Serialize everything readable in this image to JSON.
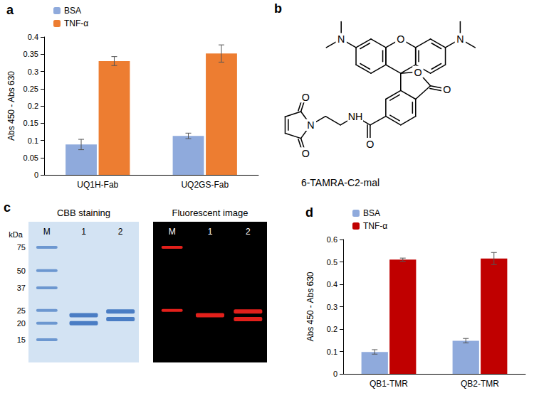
{
  "chart_data": [
    {
      "type": "bar",
      "title": "a",
      "categories": [
        "UQ1H-Fab",
        "UQ2GS-Fab"
      ],
      "ylabel": "Abs 450 - Abs 630",
      "series": [
        {
          "name": "BSA",
          "color": "#8faadc",
          "values": [
            0.088,
            0.113
          ],
          "errors": [
            0.015,
            0.008
          ]
        },
        {
          "name": "TNF-α",
          "color": "#ed7d31",
          "values": [
            0.33,
            0.352
          ],
          "errors": [
            0.013,
            0.025
          ]
        }
      ],
      "ylim": [
        0,
        0.4
      ],
      "yticks": [
        0,
        0.05,
        0.1,
        0.15,
        0.2,
        0.25,
        0.3,
        0.35,
        0.4
      ],
      "grid": false,
      "legend": "top-left"
    },
    {
      "type": "bar",
      "title": "d",
      "categories": [
        "QB1-TMR",
        "QB2-TMR"
      ],
      "ylabel": "Abs 450 - Abs 630",
      "series": [
        {
          "name": "BSA",
          "color": "#8faadc",
          "values": [
            0.098,
            0.148
          ],
          "errors": [
            0.01,
            0.01
          ]
        },
        {
          "name": "TNF-α",
          "color": "#c00000",
          "values": [
            0.51,
            0.515
          ],
          "errors": [
            0.007,
            0.027
          ]
        }
      ],
      "ylim": [
        0,
        0.6
      ],
      "yticks": [
        0,
        0.1,
        0.2,
        0.3,
        0.4,
        0.5,
        0.6
      ],
      "grid": false,
      "legend": "top-left"
    }
  ],
  "structure": {
    "title": "b",
    "label": "6-TAMRA-C2-mal",
    "atoms": [
      "N",
      "N",
      "O",
      "O",
      "O",
      "O",
      "NH",
      "N",
      "O",
      "O"
    ]
  },
  "gel": {
    "title": "c",
    "unit": "kDa",
    "marker_labels": [
      75,
      50,
      37,
      25,
      20,
      15
    ],
    "panels": [
      {
        "title": "CBB staining",
        "background": "#d3e3f3",
        "color": "#4a7dc4",
        "lanes": [
          {
            "label": "M",
            "bands": [
              75,
              50,
              37,
              25,
              20,
              15
            ]
          },
          {
            "label": "1",
            "bands": [
              23,
              20
            ]
          },
          {
            "label": "2",
            "bands": [
              24.5,
              21.5
            ]
          }
        ]
      },
      {
        "title": "Fluorescent image",
        "background": "#000000",
        "color": "#e3201b",
        "lanes": [
          {
            "label": "M",
            "bands": [
              75,
              25
            ]
          },
          {
            "label": "1",
            "bands": [
              23
            ]
          },
          {
            "label": "2",
            "bands": [
              24.5,
              21.5
            ]
          }
        ]
      }
    ]
  }
}
